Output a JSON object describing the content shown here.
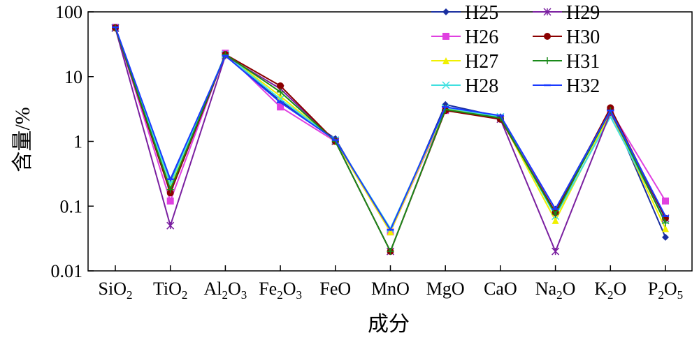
{
  "chart_data": {
    "type": "line",
    "title": "",
    "xlabel": "成分",
    "ylabel": "含量/%",
    "yscale": "log",
    "ylim": [
      0.01,
      100
    ],
    "yticks": [
      "0.01",
      "0.1",
      "1",
      "10",
      "100"
    ],
    "yticks_values": [
      0.01,
      0.1,
      1,
      10,
      100
    ],
    "categories": [
      [
        "SiO",
        "2"
      ],
      [
        "TiO",
        "2"
      ],
      [
        "Al",
        "2",
        "O",
        "3"
      ],
      [
        "Fe",
        "2",
        "O",
        "3"
      ],
      [
        "FeO"
      ],
      [
        "MnO"
      ],
      [
        "MgO"
      ],
      [
        "CaO"
      ],
      [
        "Na",
        "2",
        "O"
      ],
      [
        "K",
        "2",
        "O"
      ],
      [
        "P",
        "2",
        "O",
        "5"
      ]
    ],
    "legend_placement": "top-right",
    "series": [
      {
        "name": "H25",
        "color": "#1a2fa0",
        "marker": "diamond",
        "values": [
          57,
          0.25,
          21,
          4.2,
          1.1,
          0.04,
          3.7,
          2.4,
          0.09,
          3.1,
          0.033
        ]
      },
      {
        "name": "H26",
        "color": "#e040e0",
        "marker": "square",
        "values": [
          58,
          0.12,
          23,
          3.4,
          1.0,
          0.04,
          3.0,
          2.3,
          0.08,
          3.0,
          0.12
        ]
      },
      {
        "name": "H27",
        "color": "#f0f000",
        "marker": "triangle",
        "values": [
          57,
          0.2,
          22,
          5.0,
          1.0,
          0.04,
          3.2,
          2.3,
          0.06,
          2.8,
          0.045
        ]
      },
      {
        "name": "H28",
        "color": "#40e0e0",
        "marker": "x",
        "values": [
          57,
          0.22,
          22,
          4.5,
          1.05,
          0.045,
          3.3,
          2.4,
          0.07,
          2.4,
          0.06
        ]
      },
      {
        "name": "H29",
        "color": "#7a1fa0",
        "marker": "star",
        "values": [
          56,
          0.05,
          21,
          6.5,
          1.0,
          0.02,
          3.1,
          2.2,
          0.02,
          2.8,
          0.065
        ]
      },
      {
        "name": "H30",
        "color": "#8b0000",
        "marker": "circle",
        "values": [
          57,
          0.16,
          22,
          7.2,
          1.0,
          0.02,
          3.0,
          2.2,
          0.08,
          3.3,
          0.065
        ]
      },
      {
        "name": "H31",
        "color": "#1a8a1a",
        "marker": "plus",
        "values": [
          57,
          0.18,
          22,
          5.8,
          1.0,
          0.02,
          3.1,
          2.3,
          0.075,
          3.0,
          0.055
        ]
      },
      {
        "name": "H32",
        "color": "#1a3aff",
        "marker": "dash",
        "values": [
          58,
          0.26,
          21,
          4.0,
          1.05,
          0.043,
          3.4,
          2.5,
          0.09,
          3.0,
          0.07
        ]
      }
    ]
  }
}
